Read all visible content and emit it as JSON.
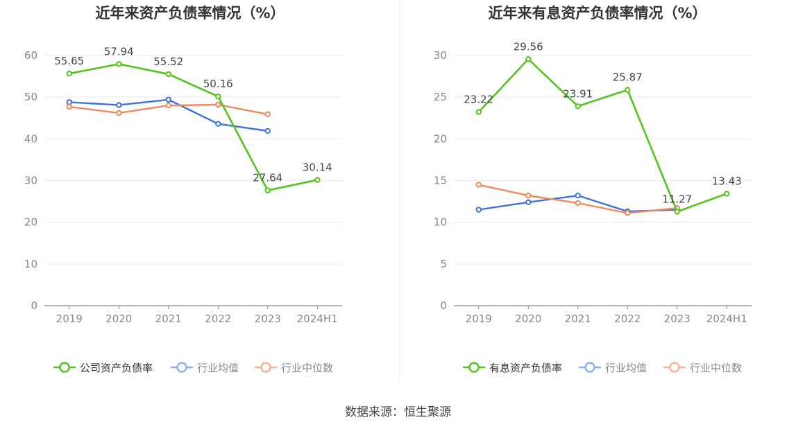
{
  "source_text": "数据来源：恒生聚源",
  "chart_data": [
    {
      "type": "line",
      "title": "近年来资产负债率情况（%）",
      "categories": [
        "2019",
        "2020",
        "2021",
        "2022",
        "2023",
        "2024H1"
      ],
      "ylim": [
        0,
        60
      ],
      "yticks": [
        "0",
        "10",
        "20",
        "30",
        "40",
        "50",
        "60"
      ],
      "grid": true,
      "legend_position": "bottom",
      "series": [
        {
          "name": "公司资产负债率",
          "color": "#52c41a",
          "labeled": true,
          "values": [
            55.65,
            57.94,
            55.52,
            50.16,
            27.64,
            30.14
          ],
          "labels": [
            "55.65",
            "57.94",
            "55.52",
            "50.16",
            "27.64",
            "30.14"
          ]
        },
        {
          "name": "行业均值",
          "color": "#3b73db",
          "labeled": false,
          "values": [
            48.8,
            48.1,
            49.4,
            43.6,
            41.9,
            null
          ]
        },
        {
          "name": "行业中位数",
          "color": "#f0895c",
          "labeled": false,
          "values": [
            47.7,
            46.2,
            48.0,
            48.2,
            45.9,
            null
          ]
        }
      ]
    },
    {
      "type": "line",
      "title": "近年来有息资产负债率情况（%）",
      "categories": [
        "2019",
        "2020",
        "2021",
        "2022",
        "2023",
        "2024H1"
      ],
      "ylim": [
        0,
        30
      ],
      "yticks": [
        "0",
        "5",
        "10",
        "15",
        "20",
        "25",
        "30"
      ],
      "grid": true,
      "legend_position": "bottom",
      "series": [
        {
          "name": "有息资产负债率",
          "color": "#52c41a",
          "labeled": true,
          "values": [
            23.22,
            29.56,
            23.91,
            25.87,
            11.27,
            13.43
          ],
          "labels": [
            "23.22",
            "29.56",
            "23.91",
            "25.87",
            "11.27",
            "13.43"
          ]
        },
        {
          "name": "行业均值",
          "color": "#3b73db",
          "labeled": false,
          "values": [
            11.5,
            12.4,
            13.2,
            11.3,
            11.5,
            null
          ]
        },
        {
          "name": "行业中位数",
          "color": "#f0895c",
          "labeled": false,
          "values": [
            14.5,
            13.2,
            12.3,
            11.1,
            11.7,
            null
          ]
        }
      ]
    }
  ]
}
